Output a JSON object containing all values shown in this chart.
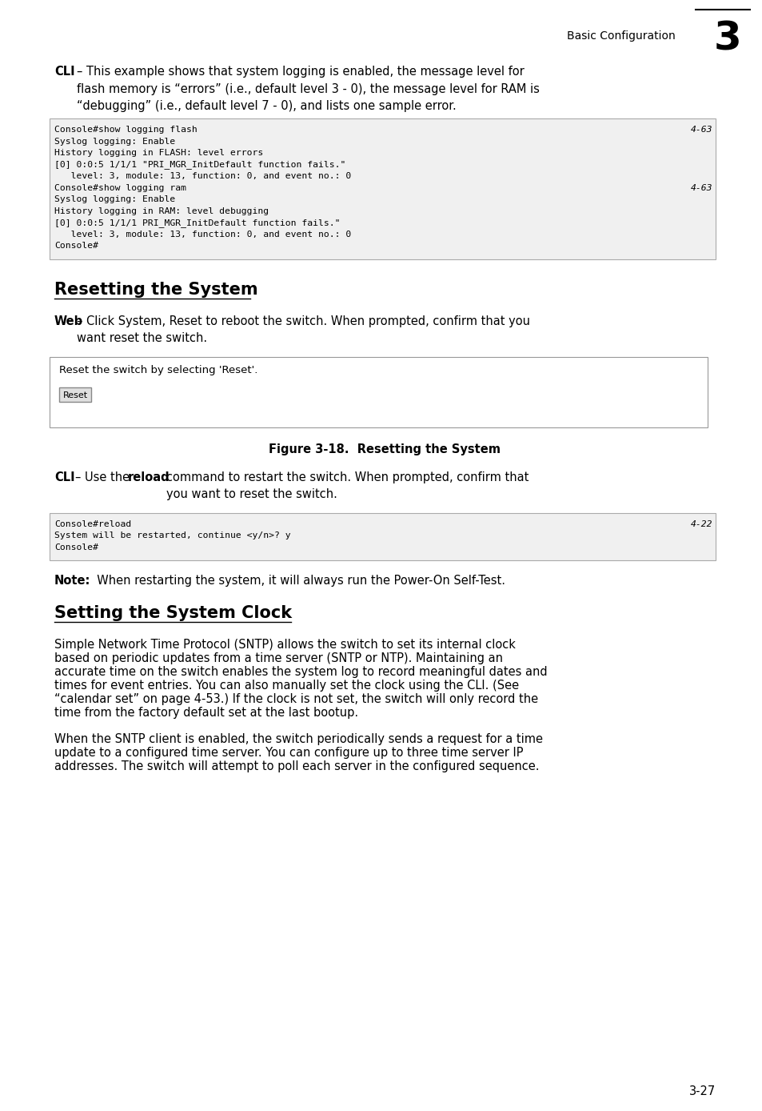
{
  "page_bg": "#ffffff",
  "header_text": "Basic Configuration",
  "header_number": "3",
  "code1_lines": [
    [
      "Console#show logging flash",
      "4-63"
    ],
    [
      "Syslog logging: Enable",
      ""
    ],
    [
      "History logging in FLASH: level errors",
      ""
    ],
    [
      "[0] 0:0:5 1/1/1 \"PRI_MGR_InitDefault function fails.\"",
      ""
    ],
    [
      "   level: 3, module: 13, function: 0, and event no.: 0",
      ""
    ],
    [
      "Console#show logging ram",
      "4-63"
    ],
    [
      "Syslog logging: Enable",
      ""
    ],
    [
      "History logging in RAM: level debugging",
      ""
    ],
    [
      "[0] 0:0:5 1/1/1 PRI_MGR_InitDefault function fails.\"",
      ""
    ],
    [
      "   level: 3, module: 13, function: 0, and event no.: 0",
      ""
    ],
    [
      "Console#",
      ""
    ]
  ],
  "code2_lines": [
    [
      "Console#reload",
      "4-22"
    ],
    [
      "System will be restarted, continue <y/n>? y",
      ""
    ],
    [
      "Console#",
      ""
    ]
  ],
  "section1_title": "Resetting the System",
  "section2_title": "Setting the System Clock",
  "figure_caption": "Figure 3-18.  Resetting the System",
  "figure_box_text": "Reset the switch by selecting 'Reset'.",
  "note_text": "  When restarting the system, it will always run the Power-On Self-Test.",
  "body_para1_lines": [
    "Simple Network Time Protocol (SNTP) allows the switch to set its internal clock",
    "based on periodic updates from a time server (SNTP or NTP). Maintaining an",
    "accurate time on the switch enables the system log to record meaningful dates and",
    "times for event entries. You can also manually set the clock using the CLI. (See",
    "“calendar set” on page 4-53.) If the clock is not set, the switch will only record the",
    "time from the factory default set at the last bootup."
  ],
  "body_para2_lines": [
    "When the SNTP client is enabled, the switch periodically sends a request for a time",
    "update to a configured time server. You can configure up to three time server IP",
    "addresses. The switch will attempt to poll each server in the configured sequence."
  ],
  "page_number": "3-27",
  "lm": 68,
  "rm": 895,
  "code_bg": "#f0f0f0",
  "fig_w": 954,
  "fig_h": 1388
}
